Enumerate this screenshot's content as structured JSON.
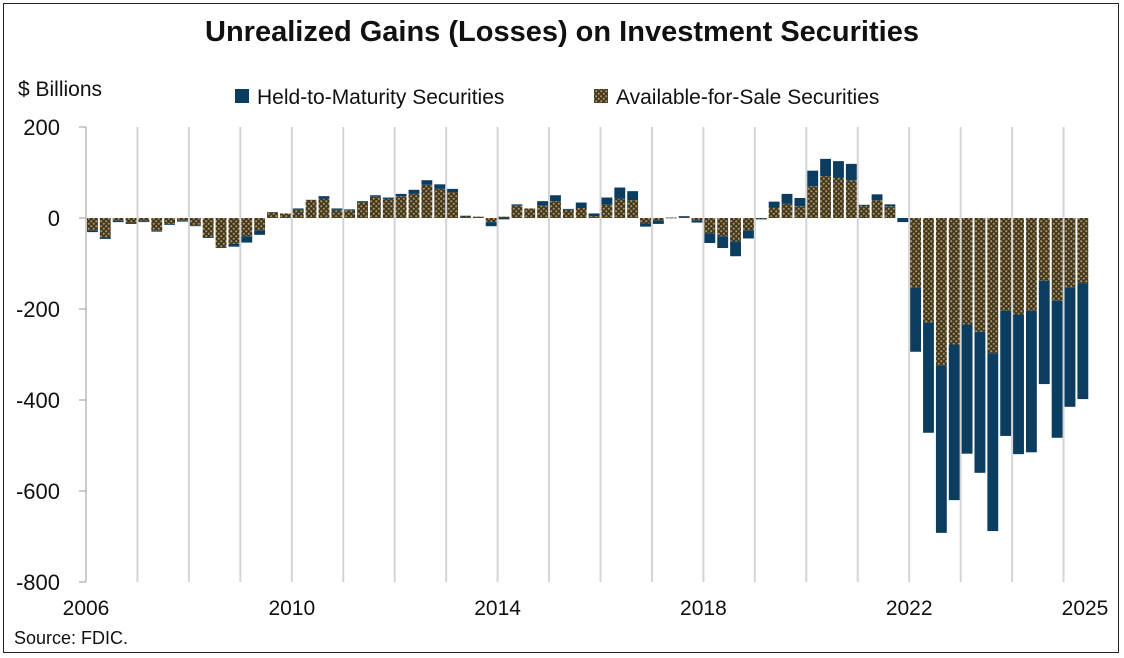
{
  "chart_data": {
    "type": "bar",
    "stacked": true,
    "title": "Unrealized Gains (Losses) on Investment Securities",
    "ylabel": "$ Billions",
    "xlabel": "",
    "ylim": [
      -800,
      200
    ],
    "yticks": [
      200,
      0,
      -200,
      -400,
      -600,
      -800
    ],
    "ytick_labels": [
      "200",
      "0",
      "-200",
      "-400",
      "-600",
      "-800"
    ],
    "xtick_labels": [
      "2006",
      "2010",
      "2014",
      "2018",
      "2022",
      "2025"
    ],
    "first_year": 2006,
    "periods_per_year": 4,
    "grid": "vertical year lines",
    "legend_position": "top",
    "legend": [
      "Held-to-Maturity Securities",
      "Available-for-Sale Securities"
    ],
    "source": "Source: FDIC.",
    "series": [
      {
        "name": "Available-for-Sale Securities",
        "color": "#6b5a30",
        "values": [
          -27,
          -43,
          -6,
          -11,
          -7,
          -28,
          -13,
          -6,
          -16,
          -42,
          -64,
          -57,
          -40,
          -27,
          13,
          10,
          18,
          40,
          42,
          18,
          17,
          35,
          47,
          42,
          48,
          53,
          73,
          64,
          57,
          4,
          3,
          -9,
          3,
          27,
          21,
          27,
          37,
          18,
          22,
          4,
          29,
          42,
          39,
          -12,
          -5,
          1,
          3,
          -5,
          -34,
          -40,
          -51,
          -27,
          -1,
          23,
          31,
          26,
          70,
          92,
          88,
          83,
          28,
          39,
          26,
          0,
          -153,
          -230,
          -324,
          -278,
          -234,
          -250,
          -297,
          -204,
          -212,
          -204,
          -138,
          -182,
          -152,
          -143
        ]
      },
      {
        "name": "Held-to-Maturity Securities",
        "color": "#0b3d60",
        "values": [
          -4,
          -3,
          -3,
          -2,
          -2,
          -2,
          -2,
          -2,
          -2,
          -2,
          -2,
          -6,
          -14,
          -10,
          0,
          0,
          3,
          0,
          6,
          3,
          2,
          2,
          3,
          3,
          5,
          9,
          10,
          10,
          7,
          1,
          0,
          -9,
          -3,
          3,
          0,
          10,
          13,
          2,
          12,
          6,
          16,
          25,
          20,
          -7,
          -8,
          0,
          1,
          -5,
          -21,
          -26,
          -33,
          -18,
          -2,
          13,
          22,
          18,
          34,
          38,
          37,
          36,
          1,
          13,
          4,
          -9,
          -141,
          -242,
          -368,
          -342,
          -284,
          -310,
          -391,
          -275,
          -307,
          -311,
          -227,
          -301,
          -263,
          -255
        ]
      }
    ]
  }
}
